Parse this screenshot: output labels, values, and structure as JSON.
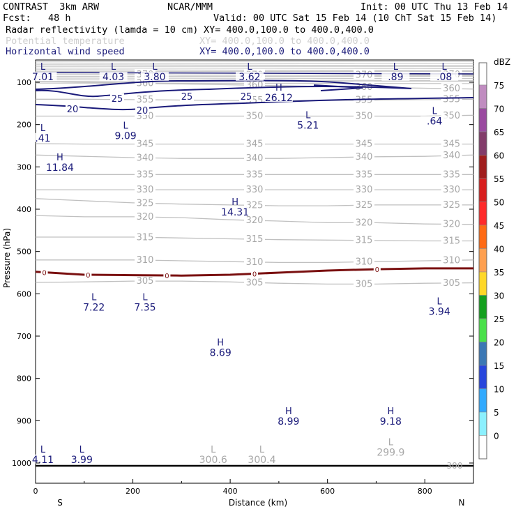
{
  "header": {
    "model": "CONTRAST  3km ARW",
    "org": "NCAR/MMM",
    "init": "Init: 00 UTC Thu 13 Feb 14",
    "fcst": "Fcst:   48 h",
    "valid": "Valid: 00 UTC Sat 15 Feb 14 (10 ChT Sat 15 Feb 14)",
    "fields": [
      {
        "label": "Radar reflectivity (lamda = 10 cm)",
        "xy": "XY= 400.0,100.0 to 400.0,400.0",
        "color": "#000000"
      },
      {
        "label": "Potential temperature",
        "xy": "XY= 400.0,100.0 to 400.0,400.0",
        "color": "#cfcfcf"
      },
      {
        "label": "Horizontal wind speed",
        "xy": "XY= 400.0,100.0 to 400.0,400.0",
        "color": "#1a1a7a"
      }
    ]
  },
  "chart_data": {
    "type": "cross-section",
    "xlabel": "Distance (km)",
    "ylabel": "Pressure (hPa)",
    "xlim": [
      0,
      900
    ],
    "ylim": [
      1050,
      60
    ],
    "x_ticks": [
      0,
      200,
      400,
      600,
      800
    ],
    "y_ticks": [
      100,
      200,
      300,
      400,
      500,
      600,
      700,
      800,
      900,
      1000
    ],
    "x_end_labels": {
      "left": "S",
      "right": "N"
    },
    "colorbar": {
      "unit": "dBZ",
      "levels": [
        {
          "value": "75",
          "color": "#c08cc0"
        },
        {
          "value": "70",
          "color": "#9a4aa0"
        },
        {
          "value": "65",
          "color": "#823c6a"
        },
        {
          "value": "60",
          "color": "#a01e1e"
        },
        {
          "value": "55",
          "color": "#d81e1e"
        },
        {
          "value": "50",
          "color": "#ff2a2a"
        },
        {
          "value": "45",
          "color": "#ff6a14"
        },
        {
          "value": "40",
          "color": "#ffa050"
        },
        {
          "value": "35",
          "color": "#ffd728"
        },
        {
          "value": "30",
          "color": "#14a01e"
        },
        {
          "value": "25",
          "color": "#4ae04a"
        },
        {
          "value": "20",
          "color": "#3c78b4"
        },
        {
          "value": "15",
          "color": "#2846dc"
        },
        {
          "value": "10",
          "color": "#32aaff"
        },
        {
          "value": "5",
          "color": "#8cf0ff"
        },
        {
          "value": "0",
          "color": "#ffffff"
        }
      ]
    },
    "theta_labels": [
      "305",
      "310",
      "315",
      "320",
      "325",
      "330",
      "335",
      "340",
      "345",
      "350",
      "355",
      "360",
      "370"
    ],
    "theta_lines": [
      {
        "label": "370",
        "p": [
          82,
          82,
          82,
          83,
          83,
          83,
          83,
          83,
          82,
          82
        ]
      },
      {
        "label": "360",
        "p": [
          98,
          100,
          102,
          104,
          106,
          108,
          110,
          112,
          114,
          116
        ]
      },
      {
        "label": "355",
        "p": [
          140,
          140,
          141,
          142,
          143,
          143,
          143,
          142,
          141,
          140
        ]
      },
      {
        "label": "350",
        "p": [
          180,
          180,
          180,
          180,
          180,
          180,
          180,
          180,
          180,
          178
        ]
      },
      {
        "label": "345",
        "p": [
          245,
          246,
          246,
          246,
          246,
          246,
          246,
          246,
          246,
          246
        ]
      },
      {
        "label": "340",
        "p": [
          272,
          275,
          278,
          280,
          280,
          280,
          278,
          276,
          275,
          272
        ]
      },
      {
        "label": "335",
        "p": [
          318,
          318,
          318,
          318,
          318,
          318,
          318,
          318,
          318,
          318
        ]
      },
      {
        "label": "330",
        "p": [
          354,
          354,
          354,
          354,
          354,
          354,
          354,
          354,
          354,
          354
        ]
      },
      {
        "label": "325",
        "p": [
          375,
          380,
          385,
          388,
          390,
          392,
          392,
          390,
          390,
          390
        ]
      },
      {
        "label": "320",
        "p": [
          415,
          418,
          418,
          420,
          425,
          428,
          432,
          432,
          435,
          436
        ]
      },
      {
        "label": "315",
        "p": [
          466,
          466,
          466,
          468,
          470,
          472,
          473,
          474,
          475,
          475
        ]
      },
      {
        "label": "310",
        "p": [
          520,
          520,
          520,
          522,
          524,
          526,
          526,
          524,
          522,
          520
        ]
      },
      {
        "label": "305",
        "p": [
          573,
          572,
          570,
          570,
          572,
          575,
          577,
          577,
          575,
          574
        ]
      }
    ],
    "wind_labels": [
      "20",
      "25",
      "26.12"
    ],
    "zero_dbz_contour": {
      "label": "0",
      "p": [
        548,
        555,
        556,
        557,
        555,
        550,
        545,
        542,
        540,
        540
      ]
    },
    "extrema": [
      {
        "kind": "L",
        "value": "7.01",
        "x": 15,
        "p": 70,
        "color": "navy"
      },
      {
        "kind": "L",
        "value": "4.03",
        "x": 160,
        "p": 70,
        "color": "navy"
      },
      {
        "kind": "L",
        "value": "3.80",
        "x": 245,
        "p": 70,
        "color": "navy"
      },
      {
        "kind": "L",
        "value": "3.62",
        "x": 440,
        "p": 70,
        "color": "navy"
      },
      {
        "kind": "L",
        "value": ".89",
        "x": 740,
        "p": 70,
        "color": "navy"
      },
      {
        "kind": "L",
        "value": ".08",
        "x": 840,
        "p": 70,
        "color": "navy"
      },
      {
        "kind": "H",
        "value": "26.12",
        "x": 500,
        "p": 120,
        "color": "navy"
      },
      {
        "kind": "L",
        "value": "5.21",
        "x": 560,
        "p": 185,
        "color": "navy"
      },
      {
        "kind": "L",
        "value": ".64",
        "x": 820,
        "p": 175,
        "color": "navy"
      },
      {
        "kind": "L",
        "value": ".41",
        "x": 15,
        "p": 215,
        "color": "navy"
      },
      {
        "kind": "L",
        "value": "9.09",
        "x": 185,
        "p": 210,
        "color": "navy"
      },
      {
        "kind": "H",
        "value": "11.84",
        "x": 50,
        "p": 285,
        "color": "navy"
      },
      {
        "kind": "H",
        "value": "14.31",
        "x": 410,
        "p": 390,
        "color": "navy"
      },
      {
        "kind": "L",
        "value": "7.22",
        "x": 120,
        "p": 615,
        "color": "navy"
      },
      {
        "kind": "L",
        "value": "7.35",
        "x": 225,
        "p": 615,
        "color": "navy"
      },
      {
        "kind": "L",
        "value": "3.94",
        "x": 830,
        "p": 625,
        "color": "navy"
      },
      {
        "kind": "H",
        "value": "8.69",
        "x": 380,
        "p": 722,
        "color": "navy"
      },
      {
        "kind": "H",
        "value": "8.99",
        "x": 520,
        "p": 885,
        "color": "navy"
      },
      {
        "kind": "H",
        "value": "9.18",
        "x": 730,
        "p": 885,
        "color": "navy"
      },
      {
        "kind": "L",
        "value": "4.11",
        "x": 15,
        "p": 975,
        "color": "navy"
      },
      {
        "kind": "L",
        "value": "3.99",
        "x": 95,
        "p": 975,
        "color": "navy"
      },
      {
        "kind": "L",
        "value": "300.6",
        "x": 365,
        "p": 975,
        "color": "grey"
      },
      {
        "kind": "L",
        "value": "300.4",
        "x": 465,
        "p": 975,
        "color": "grey"
      },
      {
        "kind": "L",
        "value": "299.9",
        "x": 730,
        "p": 958,
        "color": "grey"
      }
    ],
    "footnote_label": "300"
  }
}
